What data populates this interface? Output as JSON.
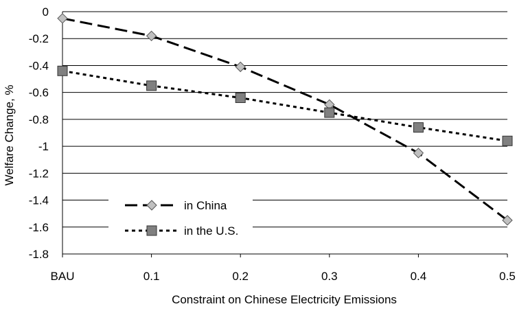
{
  "chart_data": {
    "type": "line",
    "title": "",
    "xlabel": "Constraint on Chinese Electricity Emissions",
    "ylabel": "Welfare Change, %",
    "categories": [
      "BAU",
      "0.1",
      "0.2",
      "0.3",
      "0.4",
      "0.5"
    ],
    "ylim": [
      -1.8,
      0
    ],
    "yticks": [
      "0",
      "-0.2",
      "-0.4",
      "-0.6",
      "-0.8",
      "-1",
      "-1.2",
      "-1.4",
      "-1.6",
      "-1.8"
    ],
    "grid": "horizontal",
    "legend_position": "lower-left",
    "series": [
      {
        "name": "in China",
        "values": [
          -0.05,
          -0.18,
          -0.41,
          -0.69,
          -1.05,
          -1.55
        ],
        "line_style": "long-dash",
        "marker": "diamond",
        "marker_color": "#c0c0c0"
      },
      {
        "name": "in the U.S.",
        "values": [
          -0.44,
          -0.55,
          -0.64,
          -0.75,
          -0.86,
          -0.96
        ],
        "line_style": "dotted",
        "marker": "square",
        "marker_color": "#808080"
      }
    ]
  }
}
